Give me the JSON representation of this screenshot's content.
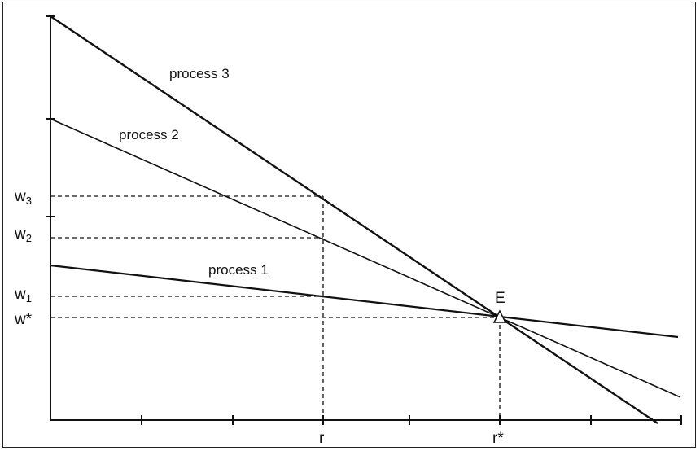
{
  "labels": {
    "process3": "process 3",
    "process2": "process 2",
    "process1": "process 1",
    "equilibrium": "E",
    "w3_base": "w",
    "w3_sub": "3",
    "w2_base": "w",
    "w2_sub": "2",
    "w1_base": "w",
    "w1_sub": "1",
    "wstar": "w*",
    "r": "r",
    "rstar": "r*"
  },
  "colors": {
    "ink": "#111111",
    "background": "#ffffff"
  }
}
